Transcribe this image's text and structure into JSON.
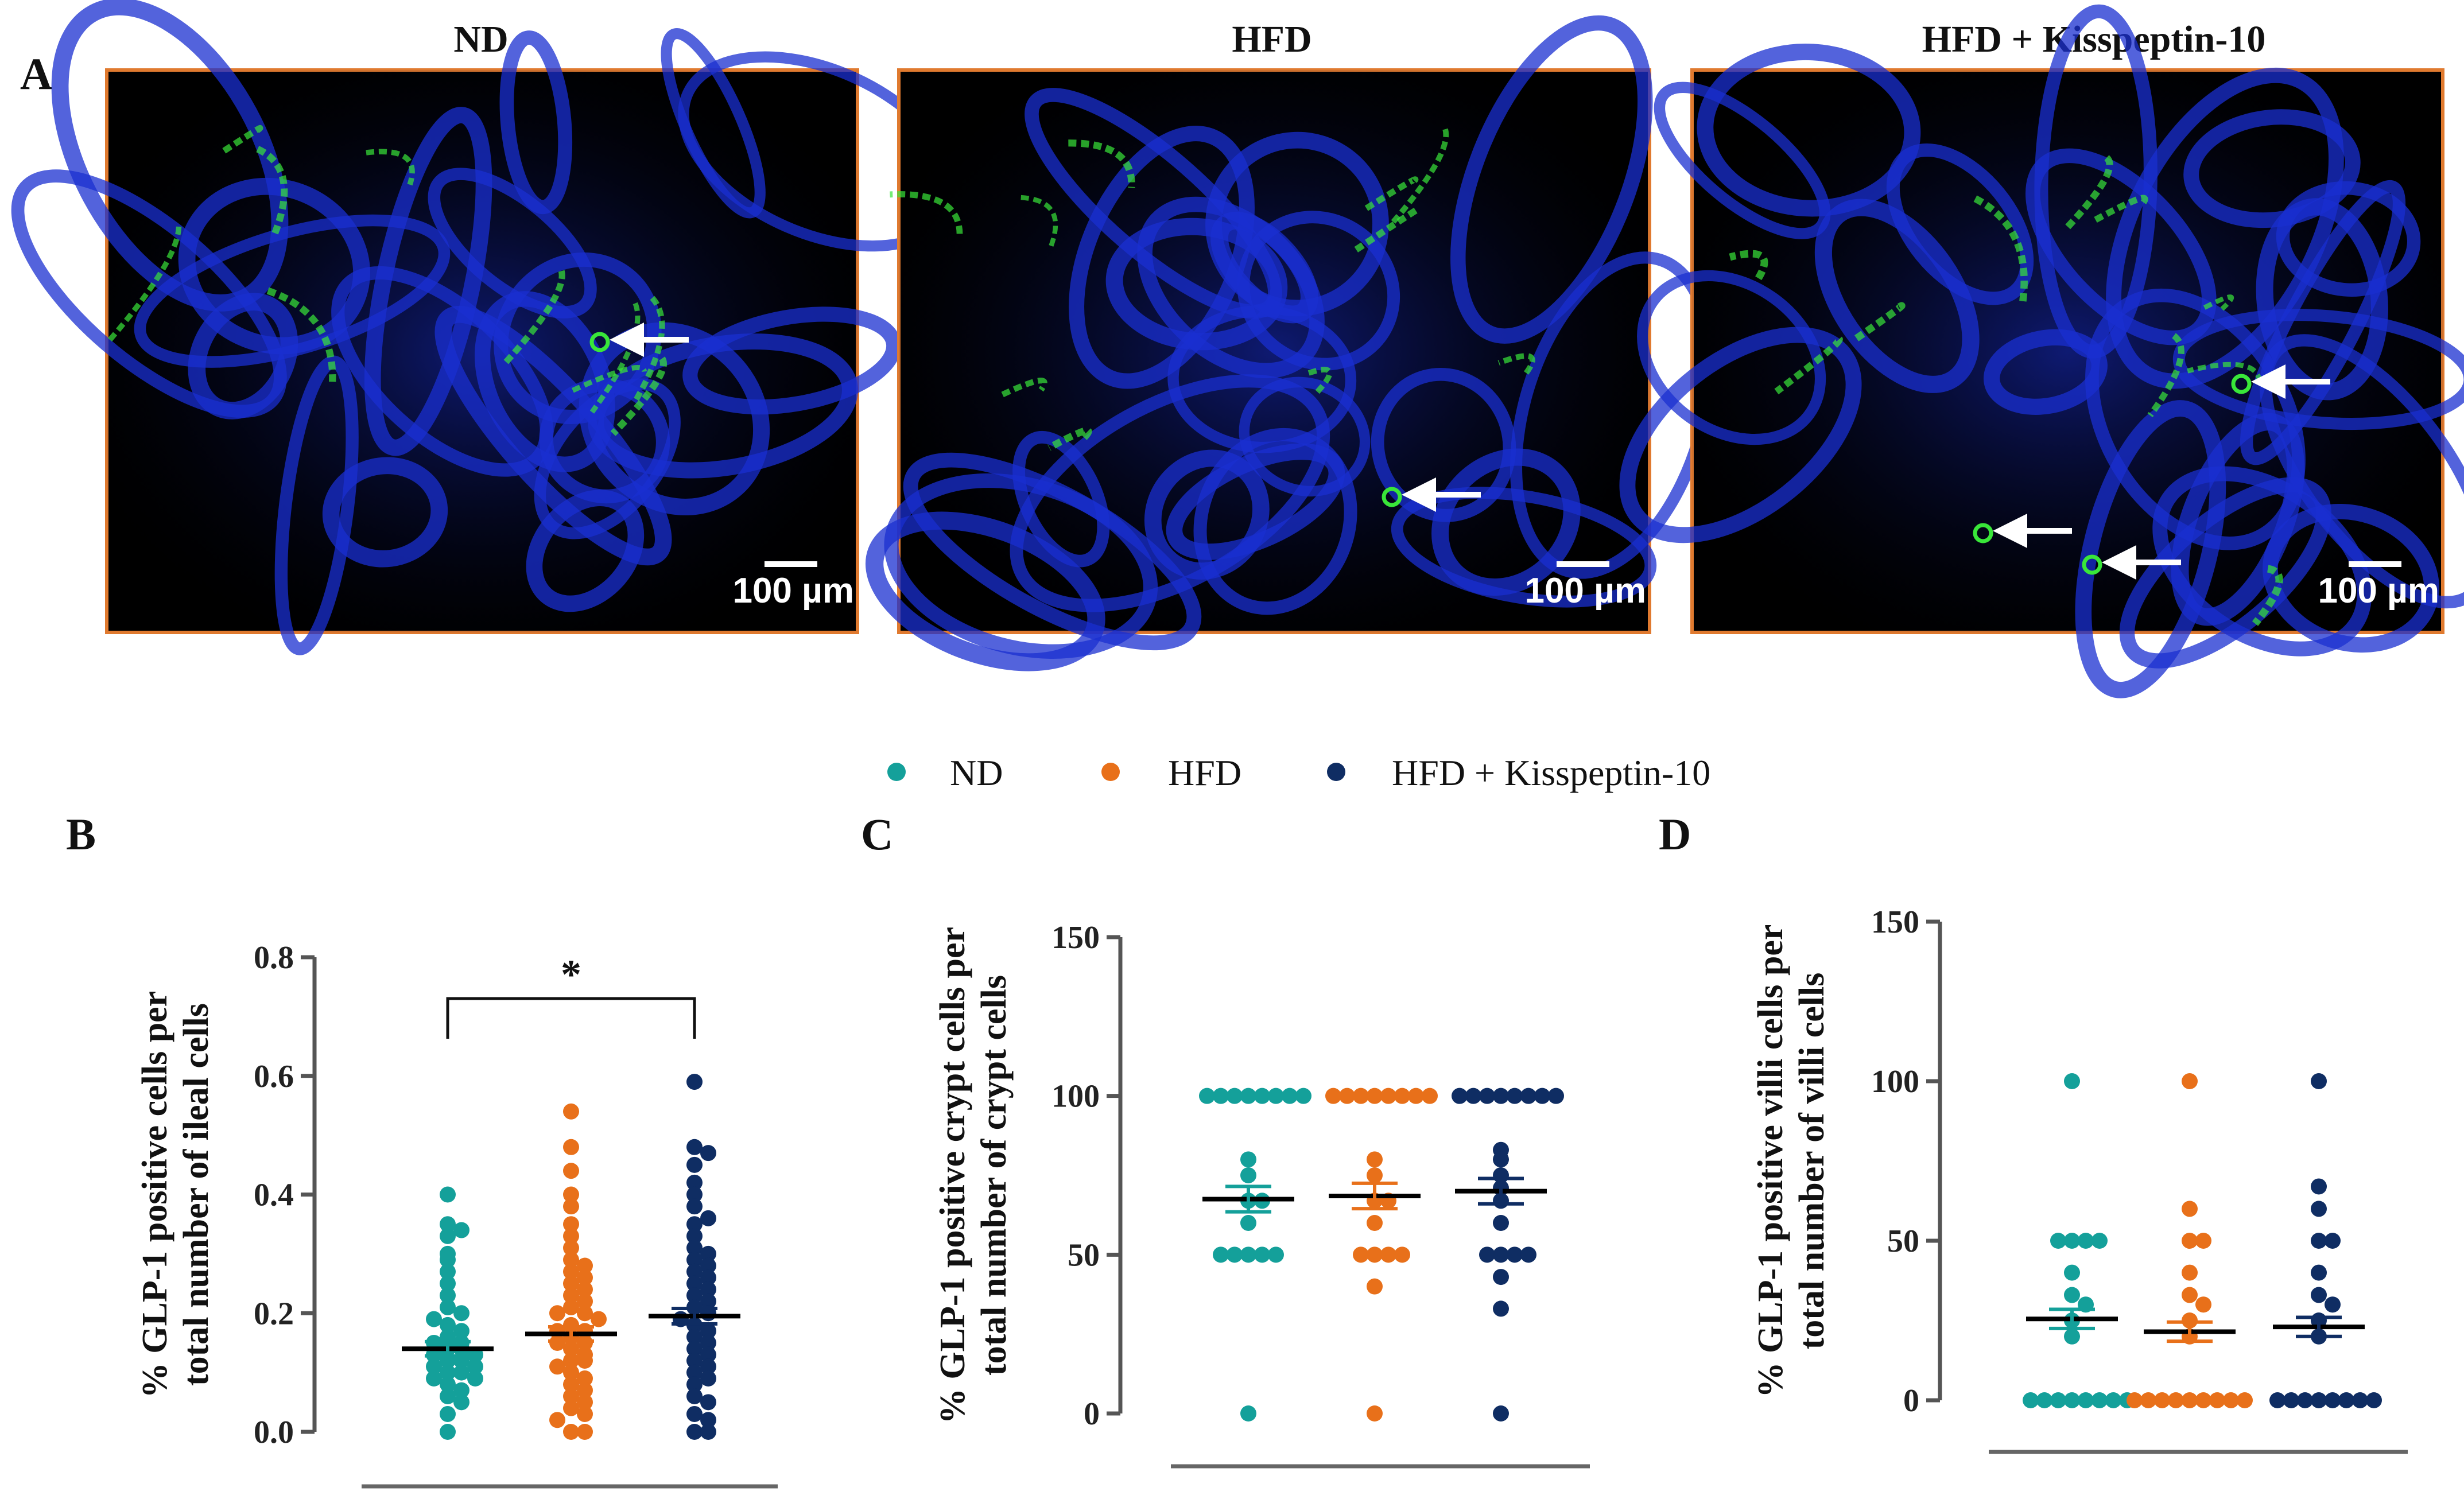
{
  "panel_a": {
    "letter": "A",
    "images": [
      {
        "title": "ND",
        "scale_bar": "100 µm"
      },
      {
        "title": "HFD",
        "scale_bar": "100 µm"
      },
      {
        "title": "HFD + Kisspeptin-10",
        "scale_bar": "100 µm"
      }
    ],
    "colors": {
      "frame": "#e07a2f",
      "nuclei": "#1a2fd0",
      "glp1": "#39e639",
      "arrow": "#ffffff"
    }
  },
  "legend": [
    {
      "name": "ND",
      "color": "#14a09a"
    },
    {
      "name": "HFD",
      "color": "#e8701a"
    },
    {
      "name": "HFD + Kisspeptin-10",
      "color": "#0f2d63"
    }
  ],
  "chart_data": [
    {
      "type": "scatter",
      "panel": "B",
      "title": "",
      "ylabel": [
        "% GLP-1 positive cells per",
        "total number of ileal cells"
      ],
      "ylim": [
        0,
        0.8
      ],
      "yticks": [
        "0.0",
        "0.2",
        "0.4",
        "0.6",
        "0.8"
      ],
      "categories": [
        "ND",
        "HFD",
        "HFD + Kisspeptin-10"
      ],
      "series": [
        {
          "name": "ND",
          "mean": 0.14,
          "sem": 0.012,
          "values": [
            0.4,
            0.35,
            0.34,
            0.33,
            0.3,
            0.29,
            0.27,
            0.25,
            0.23,
            0.21,
            0.2,
            0.19,
            0.18,
            0.17,
            0.16,
            0.15,
            0.15,
            0.14,
            0.14,
            0.13,
            0.13,
            0.12,
            0.12,
            0.11,
            0.11,
            0.1,
            0.1,
            0.09,
            0.09,
            0.08,
            0.07,
            0.06,
            0.05,
            0.03,
            0.0
          ]
        },
        {
          "name": "HFD",
          "mean": 0.165,
          "sem": 0.012,
          "values": [
            0.54,
            0.48,
            0.44,
            0.4,
            0.38,
            0.35,
            0.33,
            0.31,
            0.29,
            0.28,
            0.27,
            0.26,
            0.25,
            0.24,
            0.23,
            0.22,
            0.21,
            0.2,
            0.2,
            0.19,
            0.18,
            0.17,
            0.17,
            0.16,
            0.15,
            0.15,
            0.14,
            0.13,
            0.12,
            0.12,
            0.11,
            0.1,
            0.09,
            0.08,
            0.07,
            0.06,
            0.05,
            0.04,
            0.03,
            0.02,
            0.0,
            0.0
          ]
        },
        {
          "name": "HFD + Kisspeptin-10",
          "mean": 0.195,
          "sem": 0.013,
          "values": [
            0.59,
            0.48,
            0.47,
            0.45,
            0.42,
            0.4,
            0.38,
            0.36,
            0.35,
            0.33,
            0.31,
            0.3,
            0.29,
            0.28,
            0.27,
            0.26,
            0.25,
            0.24,
            0.23,
            0.22,
            0.21,
            0.2,
            0.19,
            0.18,
            0.17,
            0.16,
            0.15,
            0.14,
            0.13,
            0.12,
            0.11,
            0.1,
            0.09,
            0.08,
            0.06,
            0.05,
            0.03,
            0.02,
            0.0,
            0.0
          ]
        }
      ],
      "significance": {
        "between": [
          "ND",
          "HFD + Kisspeptin-10"
        ],
        "label": "*"
      }
    },
    {
      "type": "scatter",
      "panel": "C",
      "title": "",
      "ylabel": [
        "% GLP-1 positive crypt cells per",
        "total number of crypt cells"
      ],
      "ylim": [
        0,
        150
      ],
      "yticks": [
        "0",
        "50",
        "100",
        "150"
      ],
      "categories": [
        "ND",
        "HFD",
        "HFD + Kisspeptin-10"
      ],
      "series": [
        {
          "name": "ND",
          "mean": 67.5,
          "sem": 4,
          "values": [
            100,
            100,
            100,
            100,
            100,
            100,
            100,
            100,
            80,
            75,
            67,
            67,
            60,
            50,
            50,
            50,
            50,
            50,
            0
          ]
        },
        {
          "name": "HFD",
          "mean": 68.5,
          "sem": 4,
          "values": [
            100,
            100,
            100,
            100,
            100,
            100,
            100,
            100,
            80,
            75,
            67,
            67,
            60,
            50,
            50,
            50,
            50,
            40,
            0
          ]
        },
        {
          "name": "HFD + Kisspeptin-10",
          "mean": 70,
          "sem": 4,
          "values": [
            100,
            100,
            100,
            100,
            100,
            100,
            100,
            100,
            83,
            80,
            75,
            71,
            67,
            60,
            50,
            50,
            50,
            50,
            43,
            33,
            0
          ]
        }
      ]
    },
    {
      "type": "scatter",
      "panel": "D",
      "title": "",
      "ylabel": [
        "% GLP-1 positive villi cells per",
        "total number of villi cells"
      ],
      "ylim": [
        0,
        150
      ],
      "yticks": [
        "0",
        "50",
        "100",
        "150"
      ],
      "categories": [
        "ND",
        "HFD",
        "HFD + Kisspeptin-10"
      ],
      "series": [
        {
          "name": "ND",
          "mean": 25.5,
          "sem": 3,
          "values": [
            100,
            50,
            50,
            50,
            50,
            40,
            33,
            30,
            25,
            20,
            0,
            0,
            0,
            0,
            0,
            0,
            0,
            0
          ]
        },
        {
          "name": "HFD",
          "mean": 21.5,
          "sem": 3,
          "values": [
            100,
            60,
            50,
            50,
            40,
            33,
            30,
            25,
            20,
            0,
            0,
            0,
            0,
            0,
            0,
            0,
            0,
            0
          ]
        },
        {
          "name": "HFD + Kisspeptin-10",
          "mean": 23,
          "sem": 3,
          "values": [
            100,
            67,
            60,
            50,
            50,
            40,
            33,
            30,
            25,
            20,
            0,
            0,
            0,
            0,
            0,
            0,
            0,
            0
          ]
        }
      ]
    }
  ]
}
